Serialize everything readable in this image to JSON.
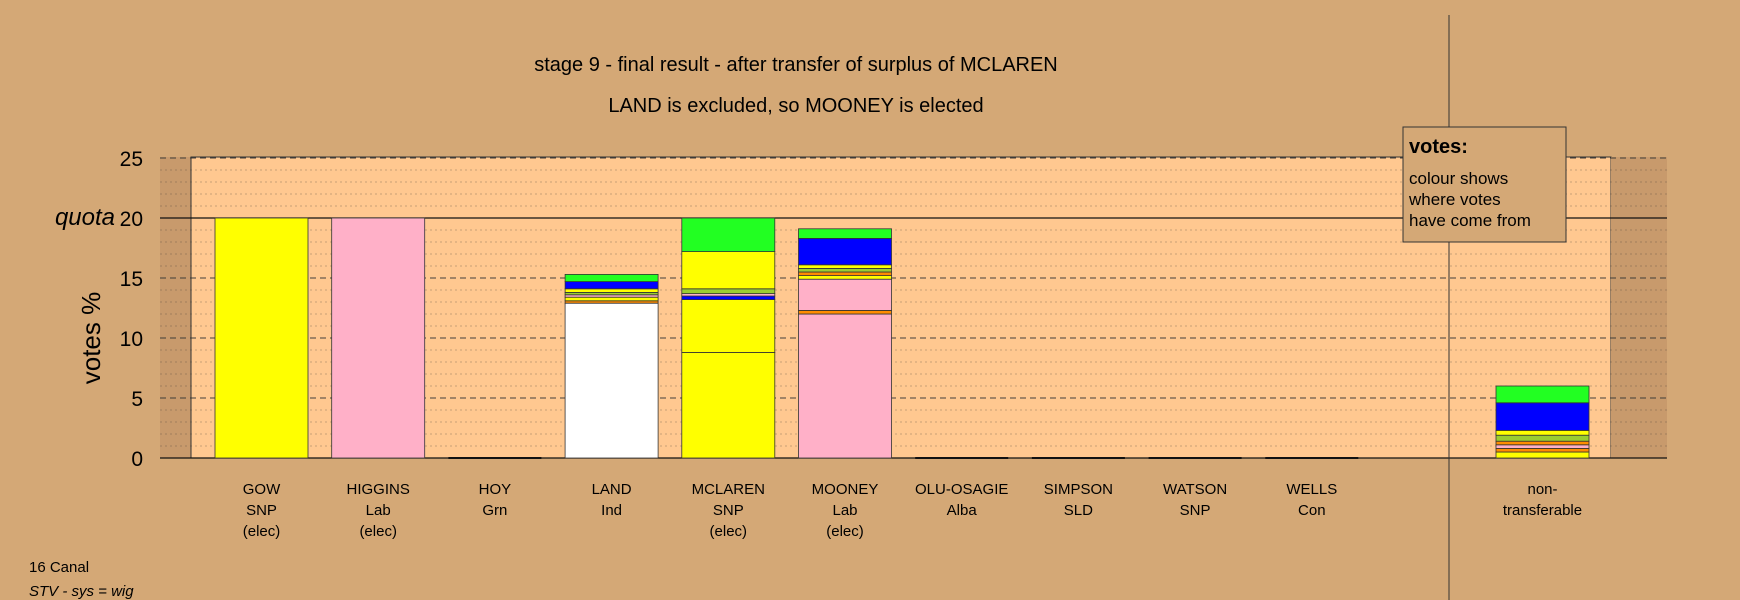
{
  "chart_data": {
    "type": "bar",
    "stacked": true,
    "title": "stage 9 - final result - after transfer of surplus of MCLAREN",
    "subtitle": "LAND is excluded, so MOONEY is elected",
    "ylabel": "votes %",
    "ylim": [
      0,
      25
    ],
    "yticks": [
      "0",
      "5",
      "10",
      "15",
      "20",
      "25"
    ],
    "quota": 20,
    "quota_label": "quota",
    "grid": true,
    "candidates": [
      {
        "name": "GOW",
        "party": "SNP",
        "status": "(elec)",
        "segments": [
          {
            "color": "#ffff00",
            "value": 20
          }
        ]
      },
      {
        "name": "HIGGINS",
        "party": "Lab",
        "status": "(elec)",
        "segments": [
          {
            "color": "#ffb0c8",
            "value": 20
          }
        ]
      },
      {
        "name": "HOY",
        "party": "Grn",
        "status": "",
        "segments": []
      },
      {
        "name": "LAND",
        "party": "Ind",
        "status": "",
        "segments": [
          {
            "color": "#ffffff",
            "value": 12.9
          },
          {
            "color": "#ff8c00",
            "value": 0.2
          },
          {
            "color": "#ffff00",
            "value": 0.3
          },
          {
            "color": "#ffb0c8",
            "value": 0.2
          },
          {
            "color": "#9acd32",
            "value": 0.2
          },
          {
            "color": "#ffff00",
            "value": 0.3
          },
          {
            "color": "#0000ff",
            "value": 0.6
          },
          {
            "color": "#22ff22",
            "value": 0.6
          }
        ]
      },
      {
        "name": "MCLAREN",
        "party": "SNP",
        "status": "(elec)",
        "segments": [
          {
            "color": "#ffff00",
            "value": 8.8
          },
          {
            "color": "#ffff00",
            "value": 4.4
          },
          {
            "color": "#0000ff",
            "value": 0.3
          },
          {
            "color": "#ffb0c8",
            "value": 0.2
          },
          {
            "color": "#9acd32",
            "value": 0.4
          },
          {
            "color": "#ffff00",
            "value": 3.1
          },
          {
            "color": "#22ff22",
            "value": 2.8
          }
        ]
      },
      {
        "name": "MOONEY",
        "party": "Lab",
        "status": "(elec)",
        "segments": [
          {
            "color": "#ffb0c8",
            "value": 12
          },
          {
            "color": "#ff8c00",
            "value": 0.3
          },
          {
            "color": "#ffb0c8",
            "value": 2.6
          },
          {
            "color": "#ffff00",
            "value": 0.3
          },
          {
            "color": "#ff8c00",
            "value": 0.3
          },
          {
            "color": "#9acd32",
            "value": 0.3
          },
          {
            "color": "#ffff00",
            "value": 0.3
          },
          {
            "color": "#0000ff",
            "value": 2.2
          },
          {
            "color": "#22ff22",
            "value": 0.8
          }
        ]
      },
      {
        "name": "OLU-OSAGIE",
        "party": "Alba",
        "status": "",
        "segments": []
      },
      {
        "name": "SIMPSON",
        "party": "SLD",
        "status": "",
        "segments": []
      },
      {
        "name": "WATSON",
        "party": "SNP",
        "status": "",
        "segments": []
      },
      {
        "name": "WELLS",
        "party": "Con",
        "status": "",
        "segments": []
      }
    ],
    "nontransferable": {
      "label_line1": "non-",
      "label_line2": "transferable",
      "segments": [
        {
          "color": "#ffff00",
          "value": 0.5
        },
        {
          "color": "#ff8c00",
          "value": 0.3
        },
        {
          "color": "#ffb0c8",
          "value": 0.3
        },
        {
          "color": "#ff8c00",
          "value": 0.3
        },
        {
          "color": "#9acd32",
          "value": 0.5
        },
        {
          "color": "#ffff00",
          "value": 0.4
        },
        {
          "color": "#0000ff",
          "value": 2.3
        },
        {
          "color": "#22ff22",
          "value": 1.4
        }
      ]
    },
    "legend": {
      "title": "votes:",
      "lines": [
        "colour shows",
        "where votes",
        "have come from"
      ],
      "placement": "top-right"
    }
  },
  "footer": {
    "ward": "16 Canal",
    "system": "STV - sys = wig"
  },
  "colors": {
    "background": "#d4a876",
    "plot_area": "#ffc890",
    "side_area": "#c89a6c"
  }
}
